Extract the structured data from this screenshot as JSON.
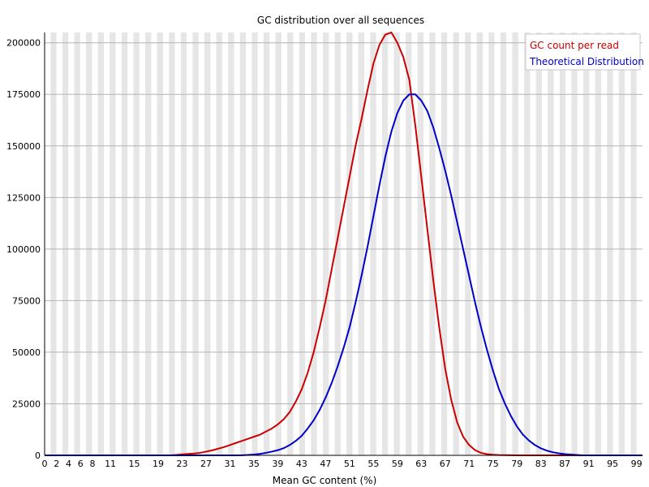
{
  "chart_data": {
    "type": "line",
    "title": "GC distribution over all sequences",
    "xlabel": "Mean GC content (%)",
    "ylabel": "",
    "xlim": [
      0,
      100
    ],
    "ylim": [
      0,
      205000
    ],
    "grid": true,
    "legend_position": "top-right",
    "x_ticks": [
      "0",
      "2",
      "4",
      "6",
      "8",
      "11",
      "15",
      "19",
      "23",
      "27",
      "31",
      "35",
      "39",
      "43",
      "47",
      "51",
      "55",
      "59",
      "63",
      "67",
      "71",
      "75",
      "79",
      "83",
      "87",
      "91",
      "95",
      "99"
    ],
    "y_ticks": [
      "0",
      "25000",
      "50000",
      "75000",
      "100000",
      "125000",
      "150000",
      "175000",
      "200000"
    ],
    "x": [
      0,
      1,
      2,
      3,
      4,
      5,
      6,
      7,
      8,
      9,
      10,
      11,
      12,
      13,
      14,
      15,
      16,
      17,
      18,
      19,
      20,
      21,
      22,
      23,
      24,
      25,
      26,
      27,
      28,
      29,
      30,
      31,
      32,
      33,
      34,
      35,
      36,
      37,
      38,
      39,
      40,
      41,
      42,
      43,
      44,
      45,
      46,
      47,
      48,
      49,
      50,
      51,
      52,
      53,
      54,
      55,
      56,
      57,
      58,
      59,
      60,
      61,
      62,
      63,
      64,
      65,
      66,
      67,
      68,
      69,
      70,
      71,
      72,
      73,
      74,
      75,
      76,
      77,
      78,
      79,
      80,
      81,
      82,
      83,
      84,
      85,
      86,
      87,
      88,
      89,
      90,
      91,
      92,
      93,
      94,
      95,
      96,
      97,
      98,
      99,
      100
    ],
    "series": [
      {
        "name": "GC count per read",
        "color": "#cc0000",
        "values": [
          0,
          0,
          0,
          0,
          0,
          0,
          0,
          0,
          0,
          0,
          0,
          0,
          0,
          0,
          0,
          0,
          0,
          0,
          0,
          0,
          0,
          0,
          200,
          500,
          700,
          900,
          1200,
          1800,
          2400,
          3200,
          4000,
          5000,
          6000,
          7000,
          8000,
          9000,
          10000,
          11500,
          13000,
          15000,
          17500,
          21000,
          26000,
          32000,
          40000,
          50000,
          62000,
          75000,
          90000,
          105000,
          120000,
          135000,
          150000,
          163000,
          177000,
          190000,
          199000,
          204000,
          205000,
          200000,
          193000,
          182000,
          160000,
          135000,
          110000,
          85000,
          62000,
          42000,
          27000,
          16000,
          9000,
          5000,
          2500,
          1200,
          600,
          300,
          150,
          80,
          40,
          20,
          0,
          0,
          0,
          0,
          0,
          0,
          0,
          0,
          0,
          0,
          0,
          0,
          0,
          0,
          0,
          0,
          0,
          0,
          0,
          0,
          0
        ]
      },
      {
        "name": "Theoretical Distribution",
        "color": "#0000cc",
        "values": [
          0,
          0,
          0,
          0,
          0,
          0,
          0,
          0,
          0,
          0,
          0,
          0,
          0,
          0,
          0,
          0,
          0,
          0,
          0,
          0,
          0,
          0,
          0,
          0,
          0,
          0,
          0,
          0,
          0,
          0,
          0,
          0,
          0,
          50,
          200,
          400,
          700,
          1200,
          1800,
          2500,
          3500,
          5000,
          7000,
          9500,
          13000,
          17000,
          22000,
          28000,
          35000,
          43000,
          52000,
          62000,
          74000,
          87000,
          101000,
          116000,
          131000,
          145000,
          157000,
          166000,
          172000,
          175000,
          175000,
          172000,
          167000,
          159000,
          149000,
          138000,
          126000,
          113000,
          100000,
          87000,
          74000,
          62000,
          51000,
          41000,
          32000,
          25000,
          19000,
          14000,
          10000,
          7200,
          5000,
          3400,
          2300,
          1500,
          1000,
          600,
          400,
          200,
          0,
          0,
          0,
          0,
          0,
          0,
          0,
          0,
          0,
          0,
          0
        ]
      }
    ]
  }
}
